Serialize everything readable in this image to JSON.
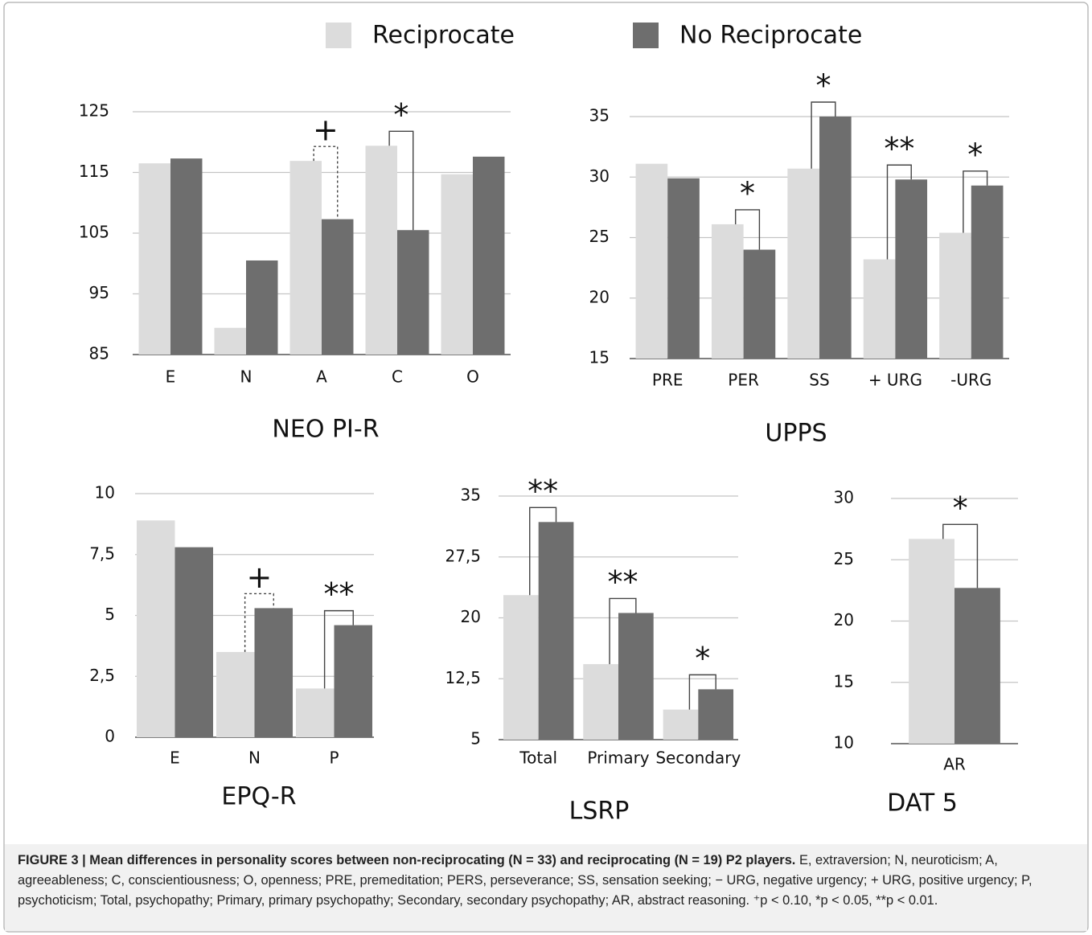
{
  "chart_data": [
    {
      "type": "bar",
      "title": "NEO PI-R",
      "categories": [
        "E",
        "N",
        "A",
        "C",
        "O"
      ],
      "series": [
        {
          "name": "Reciprocate",
          "color": "#dcdcdc",
          "values": [
            116.5,
            89.4,
            116.9,
            119.4,
            114.7
          ]
        },
        {
          "name": "No Reciprocate",
          "color": "#6e6e6e",
          "values": [
            117.3,
            100.5,
            107.3,
            105.5,
            117.6
          ]
        }
      ],
      "ylim": [
        85,
        125
      ],
      "yticks": [
        85,
        95,
        105,
        115,
        125
      ],
      "grid": true,
      "annotations": [
        {
          "text": "+",
          "category": "A",
          "line": "dashed"
        },
        {
          "text": "*",
          "category": "C",
          "line": "solid"
        }
      ]
    },
    {
      "type": "bar",
      "title": "UPPS",
      "categories": [
        "PRE",
        "PER",
        "SS",
        "+ URG",
        "-URG"
      ],
      "series": [
        {
          "name": "Reciprocate",
          "color": "#dcdcdc",
          "values": [
            31.1,
            26.1,
            30.7,
            23.2,
            25.4
          ]
        },
        {
          "name": "No Reciprocate",
          "color": "#6e6e6e",
          "values": [
            29.9,
            24.0,
            35.0,
            29.8,
            29.3
          ]
        }
      ],
      "ylim": [
        15,
        35
      ],
      "yticks": [
        15,
        20,
        25,
        30,
        35
      ],
      "grid": true,
      "annotations": [
        {
          "text": "*",
          "category": "PER",
          "line": "solid"
        },
        {
          "text": "*",
          "category": "SS",
          "line": "solid"
        },
        {
          "text": "**",
          "category": "+ URG",
          "line": "solid"
        },
        {
          "text": "*",
          "category": "-URG",
          "line": "solid"
        }
      ]
    },
    {
      "type": "bar",
      "title": "EPQ-R",
      "categories": [
        "E",
        "N",
        "P"
      ],
      "series": [
        {
          "name": "Reciprocate",
          "color": "#dcdcdc",
          "values": [
            8.9,
            3.5,
            2.0
          ]
        },
        {
          "name": "No Reciprocate",
          "color": "#6e6e6e",
          "values": [
            7.8,
            5.3,
            4.6
          ]
        }
      ],
      "ylim": [
        0,
        10
      ],
      "yticks": [
        0,
        {
          "value": 2.5,
          "label": "2,5"
        },
        5,
        {
          "value": 7.5,
          "label": "7,5"
        },
        10
      ],
      "grid": true,
      "annotations": [
        {
          "text": "+",
          "category": "N",
          "line": "dashed"
        },
        {
          "text": "**",
          "category": "P",
          "line": "solid"
        }
      ]
    },
    {
      "type": "bar",
      "title": "LSRP",
      "categories": [
        "Total",
        "Primary",
        "Secondary"
      ],
      "series": [
        {
          "name": "Reciprocate",
          "color": "#dcdcdc",
          "values": [
            22.8,
            14.3,
            8.7
          ]
        },
        {
          "name": "No Reciprocate",
          "color": "#6e6e6e",
          "values": [
            31.8,
            20.6,
            11.2
          ]
        }
      ],
      "ylim": [
        5,
        35
      ],
      "yticks": [
        5,
        {
          "value": 12.5,
          "label": "12,5"
        },
        20,
        {
          "value": 27.5,
          "label": "27,5"
        },
        35
      ],
      "grid": true,
      "annotations": [
        {
          "text": "**",
          "category": "Total",
          "line": "solid"
        },
        {
          "text": "**",
          "category": "Primary",
          "line": "solid"
        },
        {
          "text": "*",
          "category": "Secondary",
          "line": "solid"
        }
      ]
    },
    {
      "type": "bar",
      "title": "DAT 5",
      "categories": [
        "AR"
      ],
      "series": [
        {
          "name": "Reciprocate",
          "color": "#dcdcdc",
          "values": [
            26.7
          ]
        },
        {
          "name": "No Reciprocate",
          "color": "#6e6e6e",
          "values": [
            22.7
          ]
        }
      ],
      "ylim": [
        10,
        30
      ],
      "yticks": [
        10,
        15,
        20,
        25,
        30
      ],
      "grid": true,
      "annotations": [
        {
          "text": "*",
          "category": "AR",
          "line": "solid"
        }
      ]
    }
  ],
  "caption": {
    "title": "FIGURE 3 | Mean differences in personality scores between non-reciprocating (N = 33) and reciprocating (N = 19) P2 players.",
    "text": "E, extraversion; N, neuroticism; A, agreeableness; C, conscientiousness; O, openness; PRE, premeditation; PERS, perseverance; SS, sensation seeking; − URG, negative urgency; + URG, positive urgency; P, psychoticism; Total, psychopathy; Primary, primary psychopathy; Secondary, secondary psychopathy; AR, abstract reasoning. ⁺p < 0.10, *p < 0.05, **p < 0.01."
  }
}
